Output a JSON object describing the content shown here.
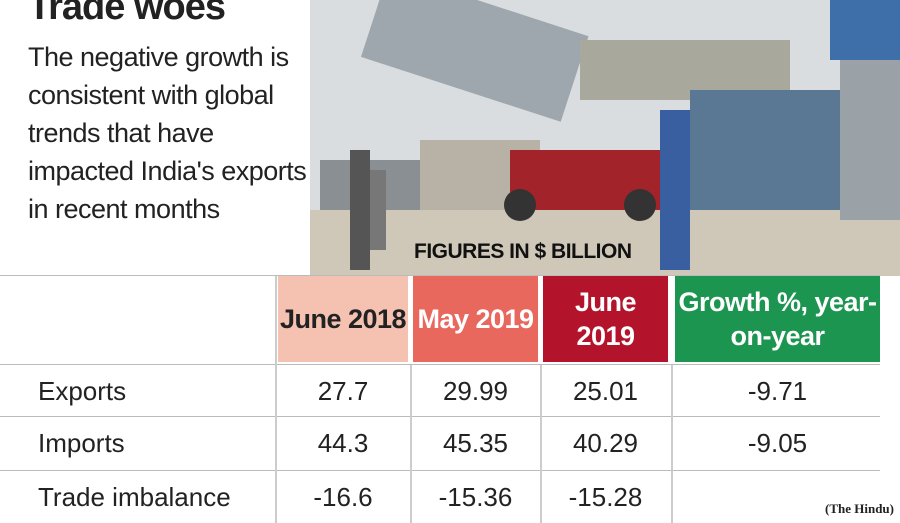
{
  "header": {
    "title": "Trade woes",
    "subtitle": "The negative growth is consistent with global trends that have impacted India's exports in recent months"
  },
  "figures_label": "FIGURES IN $ BILLION",
  "table": {
    "columns": [
      "June 2018",
      "May 2019",
      "June 2019",
      "Growth %, year-on-year"
    ],
    "rows": [
      {
        "label": "Exports",
        "cells": [
          "27.7",
          "29.99",
          "25.01",
          "-9.71"
        ]
      },
      {
        "label": "Imports",
        "cells": [
          "44.3",
          "45.35",
          "40.29",
          "-9.05"
        ]
      },
      {
        "label": "Trade imbalance",
        "cells": [
          "-16.6",
          "-15.36",
          "-15.28"
        ]
      }
    ]
  },
  "source": "(The Hindu)"
}
